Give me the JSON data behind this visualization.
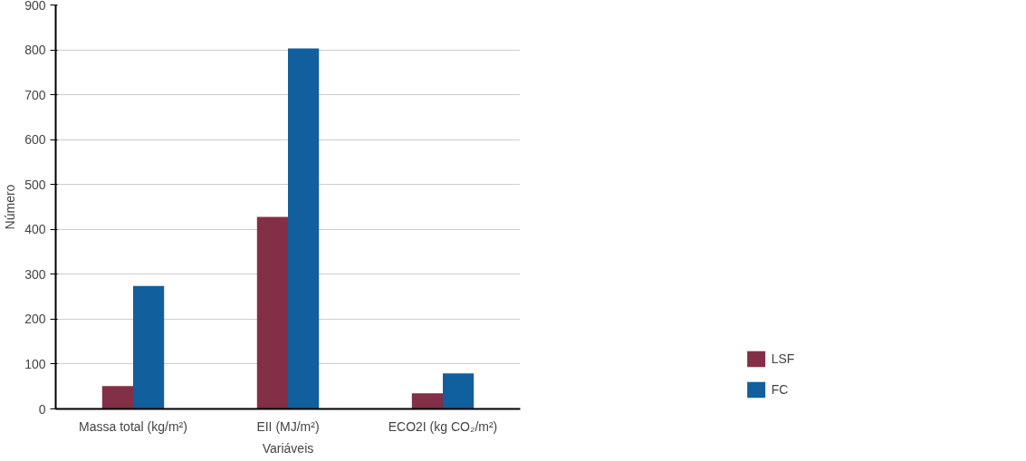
{
  "chart_data": {
    "type": "bar",
    "xlabel": "Variáveis",
    "ylabel": "Número",
    "categories": [
      "Massa total (kg/m²)",
      "EII (MJ/m²)",
      "ECO2I (kg CO₂/m²)"
    ],
    "series": [
      {
        "name": "LSF",
        "color": "#832f47",
        "values": [
          51,
          428,
          35
        ]
      },
      {
        "name": "FC",
        "color": "#115f9c",
        "values": [
          274,
          803,
          79
        ]
      }
    ],
    "ylim": [
      0,
      900
    ],
    "yticks": [
      0,
      100,
      200,
      300,
      400,
      500,
      600,
      700,
      800,
      900
    ],
    "grid": "y",
    "legend": "right"
  }
}
